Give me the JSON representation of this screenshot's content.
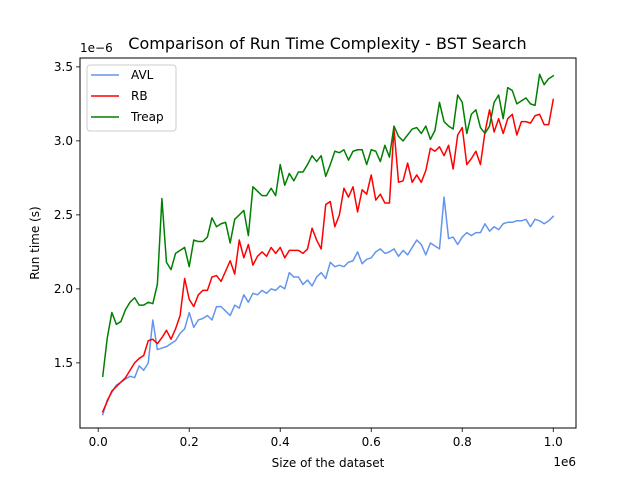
{
  "chart_data": {
    "type": "line",
    "title": "Comparison of Run Time Complexity - BST Search",
    "xlabel": "Size of the dataset",
    "ylabel": "Run time (s)",
    "x_offset_label": "1e6",
    "y_offset_label": "1e−6",
    "xlim": [
      -0.04,
      1.05
    ],
    "ylim": [
      1.06,
      3.56
    ],
    "xticks": [
      0.0,
      0.2,
      0.4,
      0.6,
      0.8,
      1.0
    ],
    "xtick_labels": [
      "0.0",
      "0.2",
      "0.4",
      "0.6",
      "0.8",
      "1.0"
    ],
    "yticks": [
      1.5,
      2.0,
      2.5,
      3.0,
      3.5
    ],
    "ytick_labels": [
      "1.5",
      "2.0",
      "2.5",
      "3.0",
      "3.5"
    ],
    "grid": false,
    "legend_position": "top-left",
    "x": [
      0.01,
      0.02,
      0.03,
      0.04,
      0.05,
      0.06,
      0.07,
      0.08,
      0.09,
      0.1,
      0.11,
      0.12,
      0.13,
      0.14,
      0.15,
      0.16,
      0.17,
      0.18,
      0.19,
      0.2,
      0.21,
      0.22,
      0.23,
      0.24,
      0.25,
      0.26,
      0.27,
      0.28,
      0.29,
      0.3,
      0.31,
      0.32,
      0.33,
      0.34,
      0.35,
      0.36,
      0.37,
      0.38,
      0.39,
      0.4,
      0.41,
      0.42,
      0.43,
      0.44,
      0.45,
      0.46,
      0.47,
      0.48,
      0.49,
      0.5,
      0.51,
      0.52,
      0.53,
      0.54,
      0.55,
      0.56,
      0.57,
      0.58,
      0.59,
      0.6,
      0.61,
      0.62,
      0.63,
      0.64,
      0.65,
      0.66,
      0.67,
      0.68,
      0.69,
      0.7,
      0.71,
      0.72,
      0.73,
      0.74,
      0.75,
      0.76,
      0.77,
      0.78,
      0.79,
      0.8,
      0.81,
      0.82,
      0.83,
      0.84,
      0.85,
      0.86,
      0.87,
      0.88,
      0.89,
      0.9,
      0.91,
      0.92,
      0.93,
      0.94,
      0.95,
      0.96,
      0.97,
      0.98,
      0.99,
      1.0
    ],
    "series": [
      {
        "name": "AVL",
        "color": "#6495ed",
        "values": [
          1.15,
          1.25,
          1.3,
          1.35,
          1.37,
          1.39,
          1.41,
          1.4,
          1.48,
          1.45,
          1.5,
          1.79,
          1.59,
          1.6,
          1.61,
          1.63,
          1.65,
          1.7,
          1.73,
          1.84,
          1.74,
          1.79,
          1.8,
          1.82,
          1.79,
          1.88,
          1.88,
          1.85,
          1.82,
          1.89,
          1.87,
          1.96,
          1.91,
          1.97,
          1.96,
          1.99,
          1.97,
          2.0,
          1.99,
          2.02,
          2.0,
          2.11,
          2.08,
          2.08,
          2.03,
          2.06,
          2.02,
          2.08,
          2.11,
          2.07,
          2.18,
          2.15,
          2.16,
          2.15,
          2.18,
          2.19,
          2.25,
          2.17,
          2.2,
          2.21,
          2.25,
          2.27,
          2.24,
          2.25,
          2.27,
          2.22,
          2.26,
          2.23,
          2.28,
          2.33,
          2.3,
          2.23,
          2.31,
          2.29,
          2.27,
          2.62,
          2.34,
          2.35,
          2.3,
          2.35,
          2.38,
          2.36,
          2.38,
          2.38,
          2.44,
          2.39,
          2.42,
          2.4,
          2.44,
          2.45,
          2.45,
          2.46,
          2.46,
          2.47,
          2.42,
          2.47,
          2.46,
          2.44,
          2.46,
          2.49
        ]
      },
      {
        "name": "RB",
        "color": "#ff0000",
        "values": [
          1.17,
          1.24,
          1.31,
          1.34,
          1.37,
          1.4,
          1.45,
          1.5,
          1.53,
          1.55,
          1.65,
          1.66,
          1.63,
          1.67,
          1.72,
          1.66,
          1.73,
          1.82,
          2.07,
          1.93,
          1.88,
          1.96,
          1.99,
          1.99,
          2.08,
          2.09,
          2.05,
          2.12,
          2.19,
          2.1,
          2.33,
          2.21,
          2.3,
          2.16,
          2.22,
          2.25,
          2.22,
          2.28,
          2.24,
          2.28,
          2.21,
          2.26,
          2.26,
          2.26,
          2.24,
          2.27,
          2.41,
          2.33,
          2.27,
          2.57,
          2.59,
          2.42,
          2.5,
          2.68,
          2.62,
          2.69,
          2.52,
          2.67,
          2.64,
          2.77,
          2.6,
          2.64,
          2.58,
          2.58,
          3.08,
          2.72,
          2.73,
          2.85,
          2.72,
          2.77,
          2.72,
          2.8,
          2.95,
          2.93,
          2.96,
          2.9,
          2.97,
          2.81,
          3.04,
          3.09,
          2.84,
          2.88,
          2.93,
          2.84,
          3.06,
          3.21,
          3.06,
          3.15,
          3.05,
          3.15,
          3.18,
          3.04,
          3.13,
          3.13,
          3.12,
          3.17,
          3.18,
          3.11,
          3.11,
          3.28
        ]
      },
      {
        "name": "Treap",
        "color": "#008000",
        "values": [
          1.41,
          1.67,
          1.84,
          1.76,
          1.78,
          1.86,
          1.91,
          1.94,
          1.89,
          1.89,
          1.91,
          1.9,
          2.03,
          2.61,
          2.18,
          2.13,
          2.24,
          2.26,
          2.28,
          2.15,
          2.33,
          2.32,
          2.32,
          2.35,
          2.48,
          2.42,
          2.44,
          2.45,
          2.31,
          2.47,
          2.5,
          2.53,
          2.36,
          2.69,
          2.66,
          2.63,
          2.63,
          2.68,
          2.63,
          2.84,
          2.7,
          2.78,
          2.73,
          2.79,
          2.79,
          2.84,
          2.9,
          2.86,
          2.9,
          2.76,
          2.84,
          2.93,
          2.92,
          2.94,
          2.87,
          2.93,
          2.94,
          2.94,
          2.84,
          2.94,
          2.93,
          2.86,
          2.97,
          2.89,
          3.1,
          3.03,
          3.0,
          3.04,
          3.08,
          3.09,
          3.05,
          3.1,
          3.01,
          3.07,
          3.26,
          3.13,
          3.1,
          3.08,
          3.31,
          3.26,
          3.05,
          3.18,
          3.21,
          3.09,
          3.05,
          3.1,
          3.26,
          3.31,
          3.15,
          3.36,
          3.34,
          3.25,
          3.27,
          3.29,
          3.25,
          3.24,
          3.45,
          3.38,
          3.42,
          3.44
        ]
      }
    ]
  }
}
